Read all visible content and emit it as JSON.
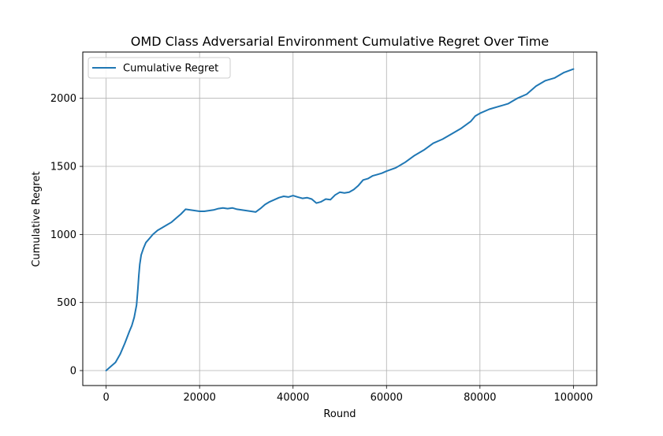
{
  "chart_data": {
    "type": "line",
    "title": "OMD Class Adversarial Environment Cumulative Regret Over Time",
    "xlabel": "Round",
    "ylabel": "Cumulative Regret",
    "xlim": [
      -5000,
      105000
    ],
    "ylim": [
      -110,
      2340
    ],
    "xticks": [
      0,
      20000,
      40000,
      60000,
      80000,
      100000
    ],
    "yticks": [
      0,
      500,
      1000,
      1500,
      2000
    ],
    "grid": true,
    "legend_position": "upper-left",
    "series": [
      {
        "name": "Cumulative Regret",
        "color": "#1f77b4",
        "x": [
          0,
          1000,
          2000,
          3000,
          4000,
          5000,
          5500,
          6000,
          6500,
          6800,
          7000,
          7200,
          7500,
          8000,
          8500,
          9000,
          10000,
          11000,
          12000,
          13000,
          14000,
          15000,
          16000,
          17000,
          18000,
          19000,
          20000,
          21000,
          22000,
          23000,
          24000,
          25000,
          26000,
          27000,
          28000,
          29000,
          30000,
          31000,
          32000,
          33000,
          34000,
          35000,
          36000,
          37000,
          38000,
          39000,
          40000,
          41000,
          42000,
          43000,
          44000,
          45000,
          46000,
          47000,
          48000,
          49000,
          50000,
          51000,
          52000,
          53000,
          54000,
          55000,
          56000,
          57000,
          58000,
          59000,
          60000,
          62000,
          64000,
          66000,
          68000,
          70000,
          72000,
          74000,
          76000,
          78000,
          79000,
          80000,
          82000,
          84000,
          86000,
          88000,
          90000,
          92000,
          94000,
          96000,
          98000,
          100000
        ],
        "y": [
          0,
          30,
          60,
          120,
          200,
          290,
          330,
          390,
          480,
          600,
          700,
          780,
          850,
          900,
          940,
          960,
          1000,
          1030,
          1050,
          1070,
          1090,
          1120,
          1150,
          1185,
          1180,
          1175,
          1170,
          1170,
          1175,
          1180,
          1190,
          1195,
          1190,
          1195,
          1185,
          1180,
          1175,
          1170,
          1165,
          1190,
          1220,
          1240,
          1255,
          1270,
          1280,
          1275,
          1285,
          1275,
          1265,
          1270,
          1260,
          1230,
          1240,
          1260,
          1255,
          1290,
          1310,
          1305,
          1310,
          1330,
          1360,
          1400,
          1410,
          1430,
          1440,
          1450,
          1465,
          1490,
          1530,
          1580,
          1620,
          1670,
          1700,
          1740,
          1780,
          1830,
          1870,
          1890,
          1920,
          1940,
          1960,
          2000,
          2030,
          2090,
          2130,
          2150,
          2190,
          2215
        ]
      }
    ]
  }
}
